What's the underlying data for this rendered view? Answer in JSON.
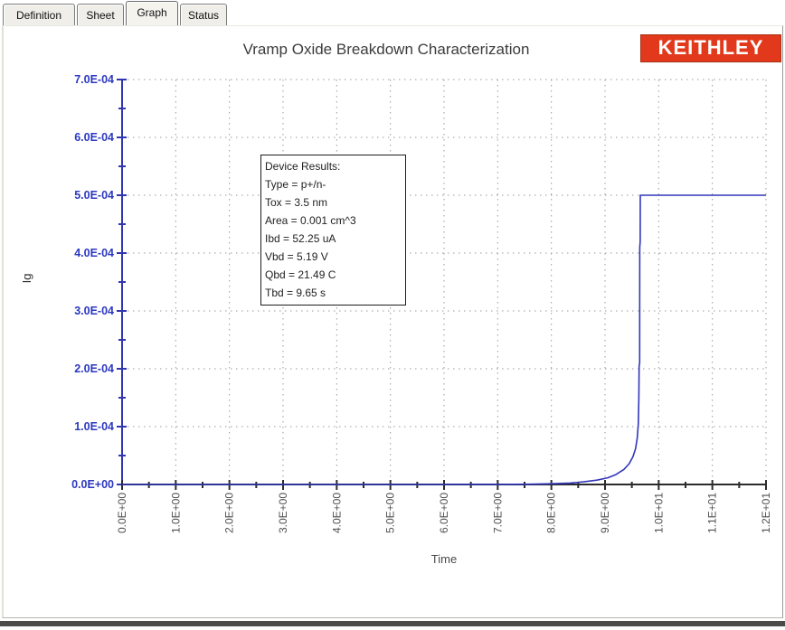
{
  "tabs": {
    "items": [
      {
        "label": "Definition",
        "active": false
      },
      {
        "label": "Sheet",
        "active": false
      },
      {
        "label": "Graph",
        "active": true
      },
      {
        "label": "Status",
        "active": false
      }
    ]
  },
  "header": {
    "logo_text": "KEITHLEY",
    "logo_color": "#e2391c"
  },
  "chart_data": {
    "type": "line",
    "title": "Vramp Oxide Breakdown Characterization",
    "xlabel": "Time",
    "ylabel": "Ig",
    "xlim": [
      0,
      12
    ],
    "ylim": [
      0,
      0.0007
    ],
    "grid": true,
    "grid_style": "dotted",
    "xticks": {
      "values": [
        0,
        1,
        2,
        3,
        4,
        5,
        6,
        7,
        8,
        9,
        10,
        11,
        12
      ],
      "labels": [
        "0.0E+00",
        "1.0E+00",
        "2.0E+00",
        "3.0E+00",
        "4.0E+00",
        "5.0E+00",
        "6.0E+00",
        "7.0E+00",
        "8.0E+00",
        "9.0E+00",
        "1.0E+01",
        "1.1E+01",
        "1.2E+01"
      ]
    },
    "yticks": {
      "values": [
        0,
        0.0001,
        0.0002,
        0.0003,
        0.0004,
        0.0005,
        0.0006,
        0.0007
      ],
      "labels": [
        "0.0E+00",
        "1.0E-04",
        "2.0E-04",
        "3.0E-04",
        "4.0E-04",
        "5.0E-04",
        "6.0E-04",
        "7.0E-04"
      ]
    },
    "axis_colors": {
      "y_axis": "#3036b0",
      "x_axis": "#2b2b2b",
      "y_tick_labels": "#2c38c0",
      "x_tick_labels": "#4f4f4f"
    },
    "series": [
      {
        "name": "Ig",
        "color": "#3236bb",
        "points": [
          [
            0,
            0
          ],
          [
            2,
            0
          ],
          [
            4,
            0
          ],
          [
            6,
            0
          ],
          [
            7,
            1e-07
          ],
          [
            7.6,
            5e-07
          ],
          [
            8.0,
            1.2e-06
          ],
          [
            8.35,
            2.5e-06
          ],
          [
            8.6,
            4.5e-06
          ],
          [
            8.85,
            7.5e-06
          ],
          [
            9.05,
            1.15e-05
          ],
          [
            9.2,
            1.7e-05
          ],
          [
            9.35,
            2.6e-05
          ],
          [
            9.45,
            3.6e-05
          ],
          [
            9.52,
            4.8e-05
          ],
          [
            9.57,
            6.2e-05
          ],
          [
            9.6,
            8e-05
          ],
          [
            9.62,
            0.000105
          ],
          [
            9.63,
            0.00015
          ],
          [
            9.635,
            0.000205
          ],
          [
            9.645,
            0.00021
          ],
          [
            9.648,
            0.00041
          ],
          [
            9.655,
            0.00042
          ],
          [
            9.658,
            0.0005
          ],
          [
            10,
            0.0005
          ],
          [
            11,
            0.0005
          ],
          [
            12,
            0.0005
          ]
        ]
      }
    ],
    "annotation": {
      "lines": [
        "Device Results:",
        "Type = p+/n-",
        "Tox = 3.5 nm",
        "Area = 0.001 cm^3",
        "Ibd = 52.25 uA",
        "Vbd = 5.19 V",
        "Qbd = 21.49 C",
        "Tbd = 9.65 s"
      ]
    }
  }
}
